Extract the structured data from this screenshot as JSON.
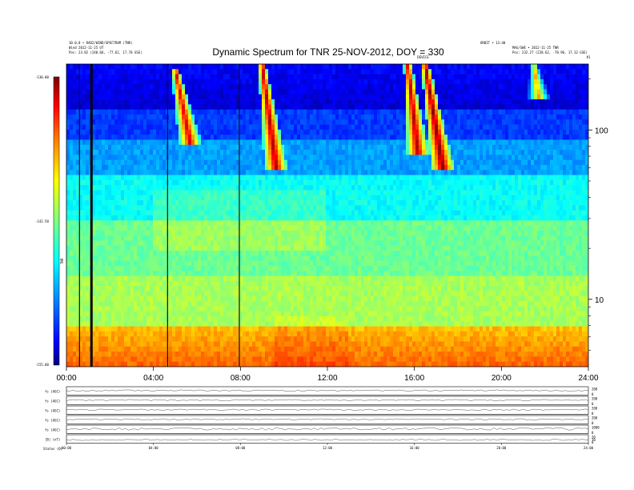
{
  "chart_data": {
    "type": "heatmap",
    "title": "Dynamic Spectrum for TNR 25-NOV-2012, DOY = 330",
    "header_left": [
      "10.0.0 • RAD2/WIND/SPECTRUM  (TNR)",
      "Wind 2012-11-25 UT",
      "Pos:   23.82 (240.66, -77.62, 17.78 GSE)"
    ],
    "header_right": [
      "ORBIT • 13:40",
      "MAG/SWE • 2012-11-25 TNR",
      "Pos:   232.27 (228.62, -78.96, 17.32 GSE)"
    ],
    "top_markers": [
      {
        "label": "DEVICE",
        "hour": 16.4
      },
      {
        "label": "#1",
        "hour": 24.0
      }
    ],
    "x_ticks": [
      "00:00",
      "04:00",
      "08:00",
      "12:00",
      "16:00",
      "20:00",
      "24:00"
    ],
    "x_range_hours": [
      0,
      24
    ],
    "y_scale": "log",
    "y_range": [
      4.0,
      245.0
    ],
    "y_ticks": [
      {
        "value": 100,
        "label": "100"
      },
      {
        "value": 10,
        "label": "10"
      }
    ],
    "colorbar": {
      "label": "TNR",
      "range": [
        -155.0,
        -130.0
      ],
      "ticks": [
        "-130.00",
        "-142.50",
        "-155.00"
      ],
      "colormap": [
        "#000080",
        "#0000ff",
        "#0080ff",
        "#00ffff",
        "#80ff80",
        "#ffff00",
        "#ff8000",
        "#ff0000",
        "#800000"
      ]
    },
    "bursts": [
      {
        "start_hour": 5.0,
        "end_hour": 5.9,
        "f_top": 230,
        "f_bottom": 80,
        "level": -132
      },
      {
        "start_hour": 9.0,
        "end_hour": 9.8,
        "f_top": 240,
        "f_bottom": 60,
        "level": -131
      },
      {
        "start_hour": 15.7,
        "end_hour": 16.3,
        "f_top": 240,
        "f_bottom": 70,
        "level": -131
      },
      {
        "start_hour": 16.5,
        "end_hour": 17.5,
        "f_top": 240,
        "f_bottom": 60,
        "level": -130
      },
      {
        "start_hour": 21.5,
        "end_hour": 21.8,
        "f_top": 240,
        "f_bottom": 150,
        "level": -137
      }
    ],
    "data_gaps_hours": [
      0.6,
      1.15,
      4.65,
      7.95
    ],
    "panels": [
      {
        "label": "fs (AGC)",
        "ticks": [
          "200",
          "0"
        ]
      },
      {
        "label": "fs (AGC)",
        "ticks": [
          "200",
          "0"
        ]
      },
      {
        "label": "fs (AGC)",
        "ticks": [
          "200",
          "0"
        ]
      },
      {
        "label": "fs (AGC)",
        "ticks": [
          "200",
          "0"
        ]
      },
      {
        "label": "fs (AGC)",
        "ticks": [
          "1000",
          "0"
        ]
      },
      {
        "label": "|B| (nT)",
        "ticks": [
          "20",
          "10",
          "0"
        ]
      }
    ],
    "panel_x_ticks": [
      "00:00",
      "04:00",
      "08:00",
      "12:00",
      "16:00",
      "20:00",
      "24:00"
    ],
    "footer": "Status   (0)"
  }
}
